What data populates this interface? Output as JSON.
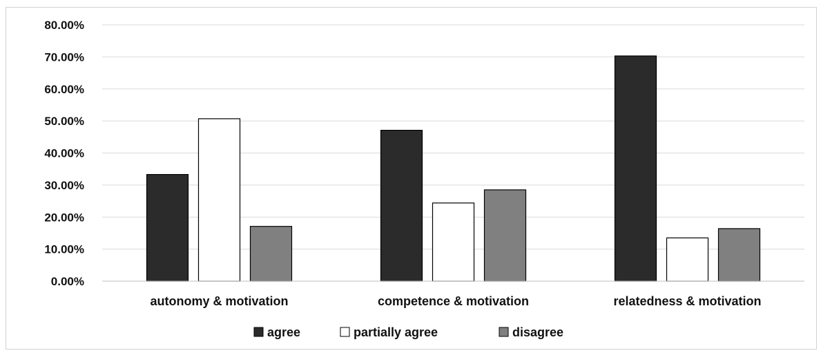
{
  "chart_data": {
    "type": "bar",
    "title": "",
    "xlabel": "",
    "ylabel": "",
    "categories": [
      "autonomy & motivation",
      "competence & motivation",
      "relatedness & motivation"
    ],
    "series": [
      {
        "name": "agree",
        "values": [
          0.333,
          0.471,
          0.703
        ],
        "color": "#2b2b2b"
      },
      {
        "name": "partially agree",
        "values": [
          0.507,
          0.244,
          0.135
        ],
        "color": "#ffffff"
      },
      {
        "name": "disagree",
        "values": [
          0.171,
          0.285,
          0.164
        ],
        "color": "#808080"
      }
    ],
    "ylim": [
      0,
      0.8
    ],
    "yticks": [
      0,
      0.1,
      0.2,
      0.3,
      0.4,
      0.5,
      0.6,
      0.7,
      0.8
    ],
    "ytick_labels": [
      "0.00%",
      "10.00%",
      "20.00%",
      "30.00%",
      "40.00%",
      "50.00%",
      "60.00%",
      "70.00%",
      "80.00%"
    ],
    "grid": true,
    "legend_position": "bottom"
  }
}
